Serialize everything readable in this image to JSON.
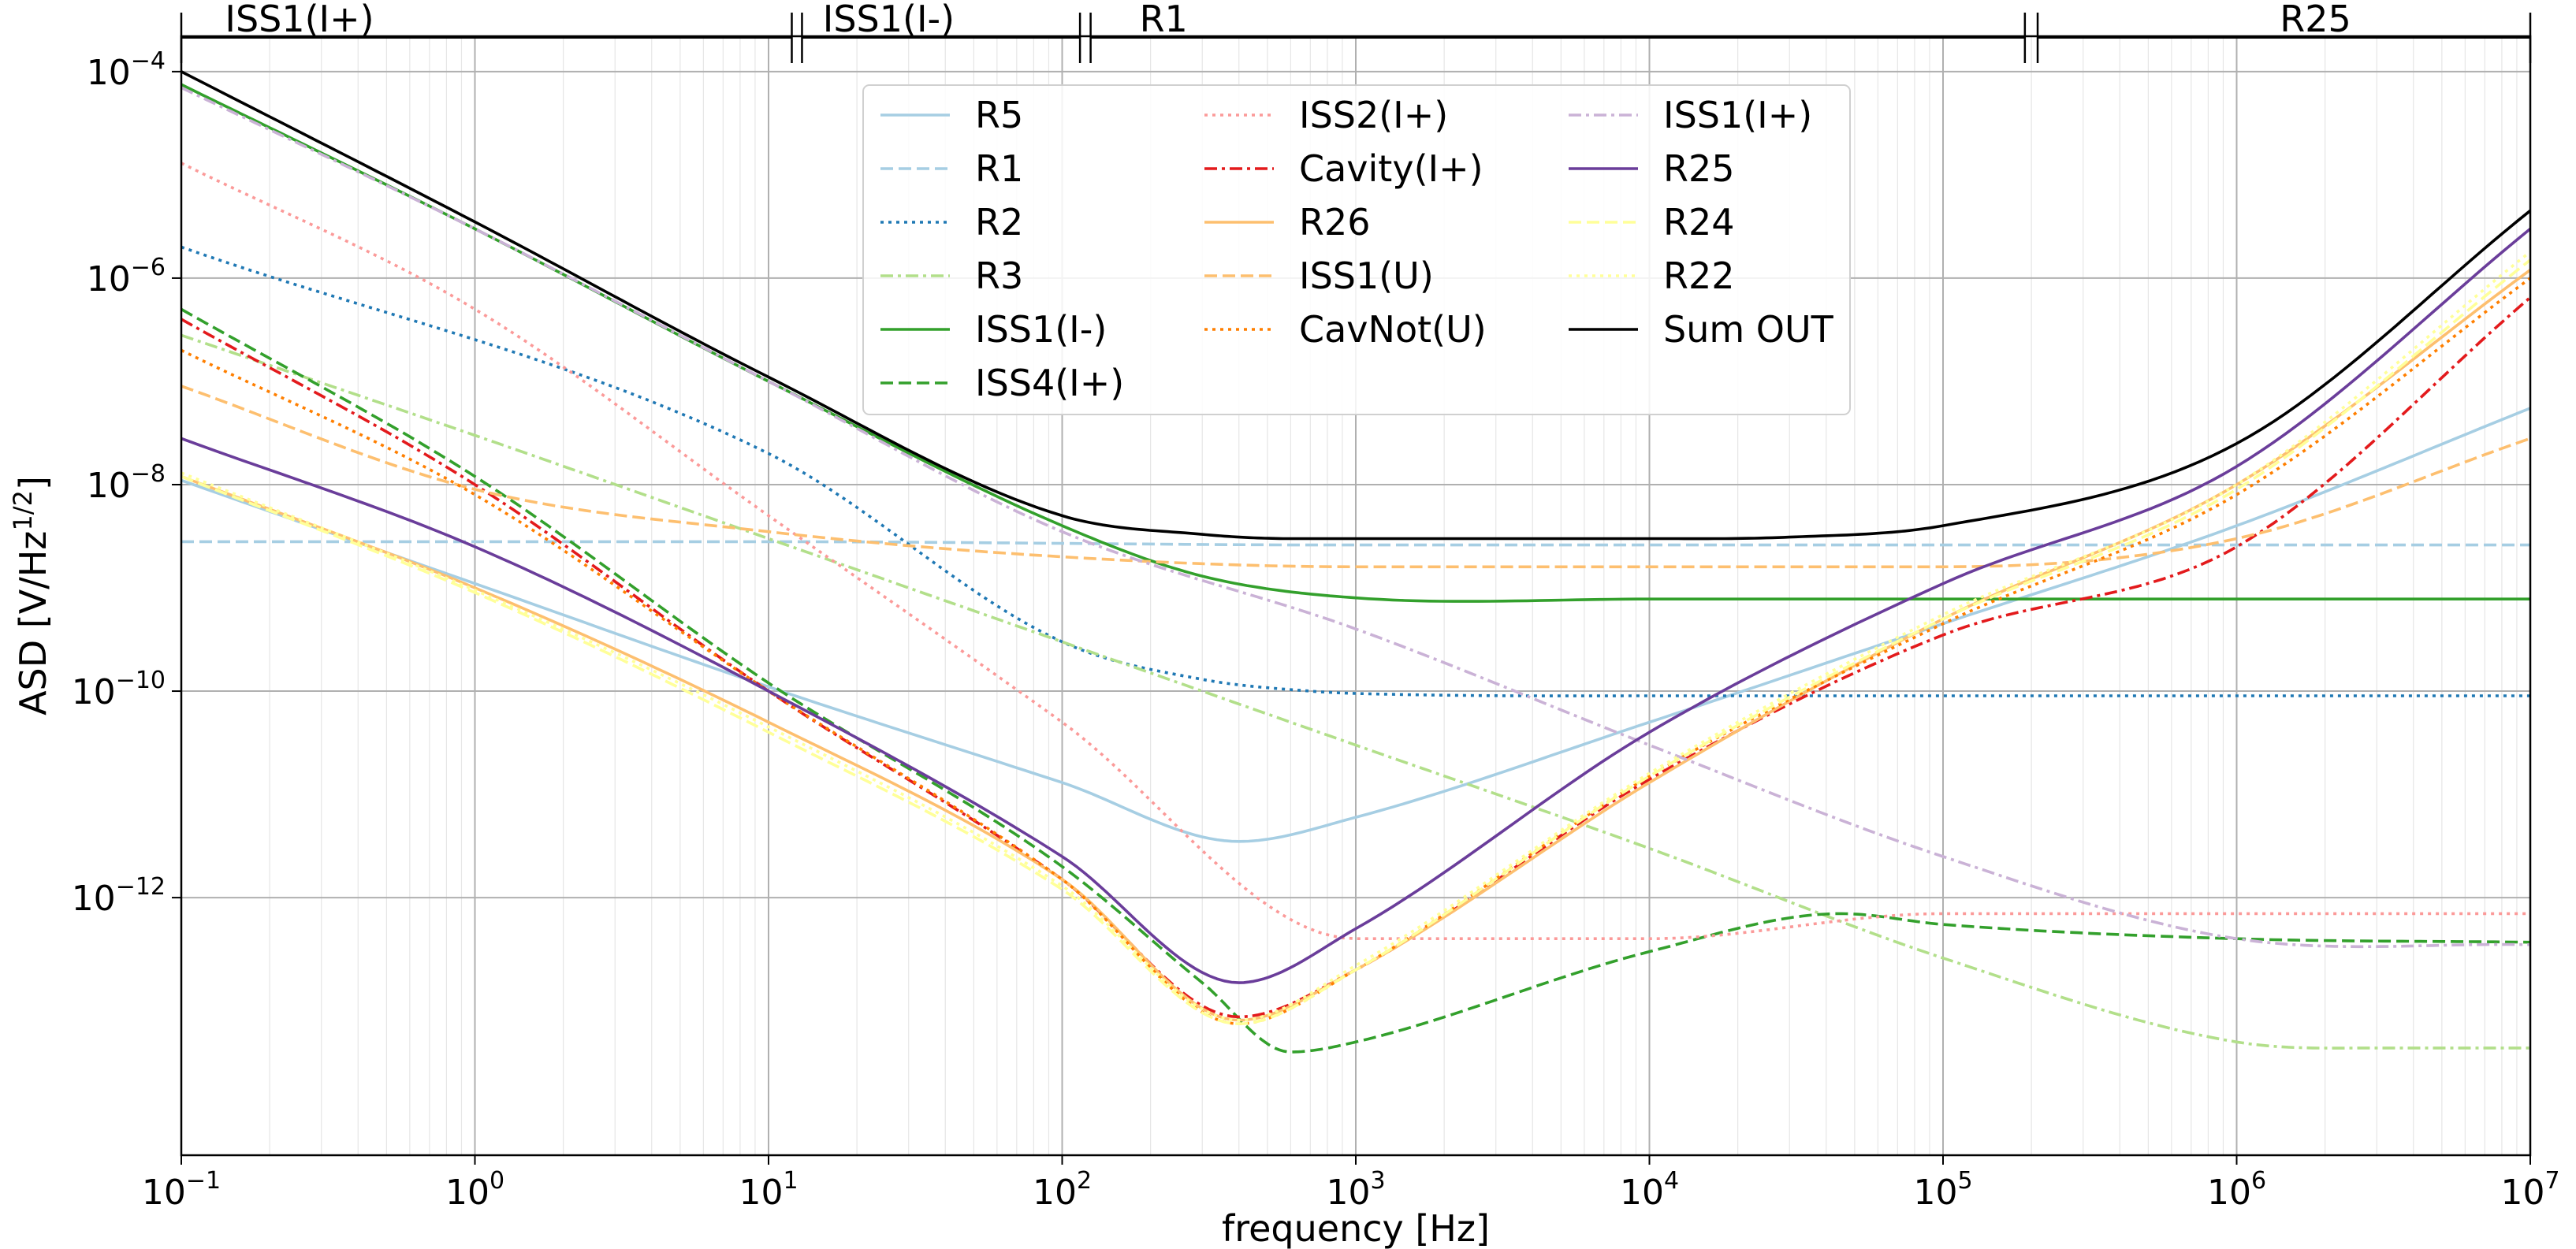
{
  "chart_data": {
    "type": "line",
    "title": "",
    "xlabel": "frequency [Hz]",
    "ylabel_base": "ASD [V/Hz",
    "ylabel_sup": "1/2",
    "ylabel_end": "]",
    "x_scale": "log",
    "y_scale": "log",
    "xlim": [
      0.1,
      10000000
    ],
    "ylim": [
      3.2e-15,
      0.00022
    ],
    "grid": true,
    "legend_position": "top-center",
    "x_ticks": [
      {
        "base": "10",
        "exp": "−1",
        "value": 0.1
      },
      {
        "base": "10",
        "exp": "0",
        "value": 1
      },
      {
        "base": "10",
        "exp": "1",
        "value": 10
      },
      {
        "base": "10",
        "exp": "2",
        "value": 100
      },
      {
        "base": "10",
        "exp": "3",
        "value": 1000
      },
      {
        "base": "10",
        "exp": "4",
        "value": 10000
      },
      {
        "base": "10",
        "exp": "5",
        "value": 100000
      },
      {
        "base": "10",
        "exp": "6",
        "value": 1000000
      },
      {
        "base": "10",
        "exp": "7",
        "value": 10000000
      }
    ],
    "y_ticks": [
      {
        "base": "10",
        "exp": "−4",
        "value": 0.0001
      },
      {
        "base": "10",
        "exp": "−6",
        "value": 1e-06
      },
      {
        "base": "10",
        "exp": "−8",
        "value": 1e-08
      },
      {
        "base": "10",
        "exp": "−10",
        "value": 1e-10
      },
      {
        "base": "10",
        "exp": "−12",
        "value": 1e-12
      }
    ],
    "regions": [
      {
        "label": "ISS1(I+)",
        "from": 0.1,
        "to": 12
      },
      {
        "label": "ISS1(I-)",
        "from": 13,
        "to": 115
      },
      {
        "label": "R1",
        "from": 125,
        "to": 190000
      },
      {
        "label": "R25",
        "from": 210000,
        "to": 10000000
      }
    ],
    "series": [
      {
        "name": "R5",
        "color": "#a6cee3",
        "dash": "solid",
        "x": [
          0.1,
          1,
          10,
          100,
          400,
          1000,
          10000,
          100000,
          1000000,
          10000000
        ],
        "y": [
          1.1e-08,
          1.1e-09,
          1.1e-10,
          1.3e-11,
          3.5e-12,
          6e-12,
          5e-11,
          4.5e-10,
          4e-09,
          5.5e-08
        ]
      },
      {
        "name": "R1",
        "color": "#a6cee3",
        "dash": "dashed",
        "x": [
          0.1,
          10,
          1000,
          100000,
          10000000
        ],
        "y": [
          2.8e-09,
          2.8e-09,
          2.6e-09,
          2.6e-09,
          2.6e-09
        ]
      },
      {
        "name": "R2",
        "color": "#1f78b4",
        "dash": "dotted",
        "x": [
          0.1,
          10,
          100,
          300,
          700,
          1000,
          10000,
          10000000
        ],
        "y": [
          2e-06,
          2e-08,
          3e-10,
          1.3e-10,
          1e-10,
          9.5e-11,
          9e-11,
          9e-11
        ]
      },
      {
        "name": "R3",
        "color": "#b2df8a",
        "dash": "dashdot",
        "x": [
          0.1,
          1,
          10,
          100,
          1000,
          10000,
          100000,
          1000000,
          3000000,
          10000000
        ],
        "y": [
          2.8e-07,
          3e-08,
          3e-09,
          3e-10,
          3e-11,
          3e-12,
          2.6e-13,
          4e-14,
          3.5e-14,
          3.5e-14
        ]
      },
      {
        "name": "ISS1(I-)",
        "color": "#33a02c",
        "dash": "solid",
        "x": [
          0.1,
          1,
          10,
          100,
          300,
          1000,
          10000,
          10000000
        ],
        "y": [
          7.5e-05,
          3e-06,
          1e-07,
          4e-09,
          1.3e-09,
          8e-10,
          7.8e-10,
          7.8e-10
        ]
      },
      {
        "name": "ISS4(I+)",
        "color": "#33a02c",
        "dash": "dashed",
        "x": [
          0.1,
          1,
          10,
          100,
          300,
          600,
          1000,
          10000,
          45000,
          100000,
          1000000,
          10000000
        ],
        "y": [
          5e-07,
          1.2e-08,
          1.2e-10,
          2e-12,
          1.5e-13,
          3.2e-14,
          4e-14,
          3e-13,
          7e-13,
          5.5e-13,
          4e-13,
          3.7e-13
        ]
      },
      {
        "name": "ISS2(I+)",
        "color": "#fb9a99",
        "dash": "dotted",
        "x": [
          0.1,
          1,
          10,
          100,
          1000,
          10000,
          100000,
          1000000,
          10000000
        ],
        "y": [
          1.3e-05,
          5e-07,
          5e-09,
          5e-11,
          4e-13,
          4e-13,
          7e-13,
          7e-13,
          7e-13
        ]
      },
      {
        "name": "Cavity(I+)",
        "color": "#e31a1c",
        "dash": "dashdot",
        "x": [
          0.1,
          1,
          10,
          100,
          400,
          1000,
          10000,
          100000,
          1000000,
          10000000
        ],
        "y": [
          4e-07,
          1e-08,
          1e-10,
          1.5e-12,
          7e-14,
          2e-13,
          1.4e-11,
          3.5e-10,
          2.5e-09,
          6.5e-07
        ]
      },
      {
        "name": "R26",
        "color": "#fdbf6f",
        "dash": "solid",
        "x": [
          0.1,
          1,
          10,
          100,
          400,
          1000,
          10000,
          100000,
          1000000,
          10000000
        ],
        "y": [
          1.2e-08,
          1e-09,
          5e-11,
          1.5e-12,
          6.5e-14,
          2e-13,
          1.3e-11,
          5e-10,
          1e-08,
          1.2e-06
        ]
      },
      {
        "name": "ISS1(U)",
        "color": "#fdbf6f",
        "dash": "dashed",
        "x": [
          0.1,
          1,
          10,
          100,
          1000,
          100000,
          1000000,
          10000000
        ],
        "y": [
          9e-08,
          9e-09,
          3.5e-09,
          2e-09,
          1.6e-09,
          1.6e-09,
          3e-09,
          2.8e-08
        ]
      },
      {
        "name": "CavNot(U)",
        "color": "#ff7f00",
        "dash": "dotted",
        "x": [
          0.1,
          1,
          10,
          100,
          400,
          1000,
          10000,
          100000,
          1000000,
          10000000
        ],
        "y": [
          2e-07,
          8e-09,
          1e-10,
          1.5e-12,
          6e-14,
          2e-13,
          1.5e-11,
          4.5e-10,
          8e-09,
          1e-06
        ]
      },
      {
        "name": "ISS1(I+)",
        "color": "#cab2d6",
        "dash": "dashdot",
        "x": [
          0.1,
          1,
          10,
          100,
          1000,
          10000,
          100000,
          1000000,
          10000000
        ],
        "y": [
          7e-05,
          3e-06,
          1e-07,
          3.5e-09,
          4e-10,
          3e-11,
          2.5e-12,
          4e-13,
          3.5e-13
        ]
      },
      {
        "name": "R25",
        "color": "#6a3d9a",
        "dash": "solid",
        "x": [
          0.1,
          1,
          10,
          100,
          400,
          1000,
          10000,
          100000,
          1000000,
          10000000
        ],
        "y": [
          2.8e-08,
          2.5e-09,
          1e-10,
          2.5e-12,
          1.5e-13,
          5e-13,
          4e-11,
          1.1e-09,
          1.5e-08,
          3e-06
        ]
      },
      {
        "name": "R24",
        "color": "#ffff99",
        "dash": "dashed",
        "x": [
          0.1,
          1,
          10,
          100,
          400,
          1000,
          10000,
          100000,
          1000000,
          10000000
        ],
        "y": [
          1.2e-08,
          9e-10,
          4e-11,
          1.2e-12,
          6e-14,
          2e-13,
          1.5e-11,
          5e-10,
          9e-09,
          1.5e-06
        ]
      },
      {
        "name": "R22",
        "color": "#ffff99",
        "dash": "dotted",
        "x": [
          0.1,
          1,
          10,
          100,
          400,
          1000,
          10000,
          100000,
          1000000,
          10000000
        ],
        "y": [
          1.3e-08,
          9.5e-10,
          4.5e-11,
          1.3e-12,
          6.5e-14,
          2.2e-13,
          1.6e-11,
          5.5e-10,
          1e-08,
          1.8e-06
        ]
      },
      {
        "name": "Sum OUT",
        "color": "#000000",
        "dash": "solid",
        "x": [
          0.1,
          1,
          10,
          100,
          300,
          600,
          1000,
          10000,
          30000,
          100000,
          1000000,
          10000000
        ],
        "y": [
          0.0001,
          3.5e-06,
          1.1e-07,
          5e-09,
          3.3e-09,
          3e-09,
          3e-09,
          3e-09,
          3.1e-09,
          4e-09,
          2.5e-08,
          4.5e-06
        ]
      }
    ]
  }
}
